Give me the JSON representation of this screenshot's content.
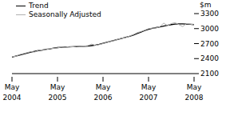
{
  "chart_data": {
    "type": "line",
    "y_label": "$m",
    "categories": [
      "May 2004",
      null,
      null,
      null,
      null,
      null,
      null,
      null,
      null,
      null,
      null,
      null,
      "May 2005",
      null,
      null,
      null,
      null,
      null,
      null,
      null,
      null,
      null,
      null,
      null,
      "May 2006",
      null,
      null,
      null,
      null,
      null,
      null,
      null,
      null,
      null,
      null,
      null,
      "May 2007",
      null,
      null,
      null,
      null,
      null,
      null,
      null,
      null,
      null,
      null,
      null,
      "May 2008"
    ],
    "series": [
      {
        "name": "Trend",
        "color": "#000000",
        "values": [
          2430,
          2450,
          2470,
          2490,
          2510,
          2530,
          2545,
          2560,
          2570,
          2585,
          2595,
          2610,
          2620,
          2625,
          2630,
          2635,
          2638,
          2640,
          2642,
          2645,
          2650,
          2660,
          2670,
          2685,
          2705,
          2725,
          2745,
          2765,
          2785,
          2805,
          2825,
          2845,
          2870,
          2900,
          2930,
          2960,
          2985,
          3005,
          3020,
          3035,
          3050,
          3065,
          3080,
          3090,
          3095,
          3095,
          3090,
          3085,
          3080
        ]
      },
      {
        "name": "Seasonally Adjusted",
        "color": "#b0b0b0",
        "values": [
          2440,
          2445,
          2480,
          2500,
          2520,
          2540,
          2530,
          2565,
          2575,
          2580,
          2600,
          2605,
          2615,
          2630,
          2625,
          2640,
          2635,
          2645,
          2640,
          2650,
          2660,
          2690,
          2665,
          2680,
          2700,
          2720,
          2750,
          2760,
          2790,
          2810,
          2820,
          2850,
          2880,
          2920,
          2940,
          2970,
          3000,
          3010,
          3015,
          3040,
          3110,
          3060,
          3100,
          3120,
          3080,
          3040,
          3100,
          3090,
          3075
        ]
      }
    ],
    "ylim": [
      2100,
      3300
    ],
    "yticks": [
      2100,
      2400,
      2700,
      3000,
      3300
    ],
    "legend": "top-left"
  }
}
